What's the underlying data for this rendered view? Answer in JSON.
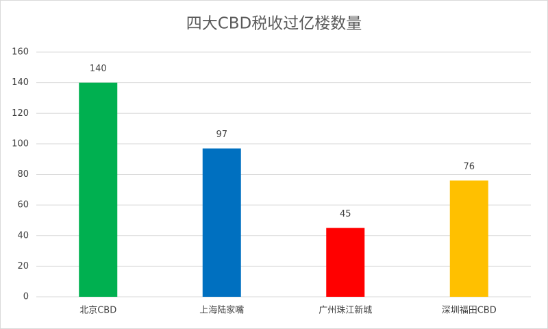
{
  "chart_data": {
    "type": "bar",
    "title": "四大CBD税收过亿楼数量",
    "categories": [
      "北京CBD",
      "上海陆家嘴",
      "广州珠江新城",
      "深圳福田CBD"
    ],
    "values": [
      140,
      97,
      45,
      76
    ],
    "colors": [
      "#00b050",
      "#0070c0",
      "#ff0000",
      "#ffc000"
    ],
    "ylim": [
      0,
      160
    ],
    "yticks": [
      0,
      20,
      40,
      60,
      80,
      100,
      120,
      140,
      160
    ],
    "grid": true
  }
}
